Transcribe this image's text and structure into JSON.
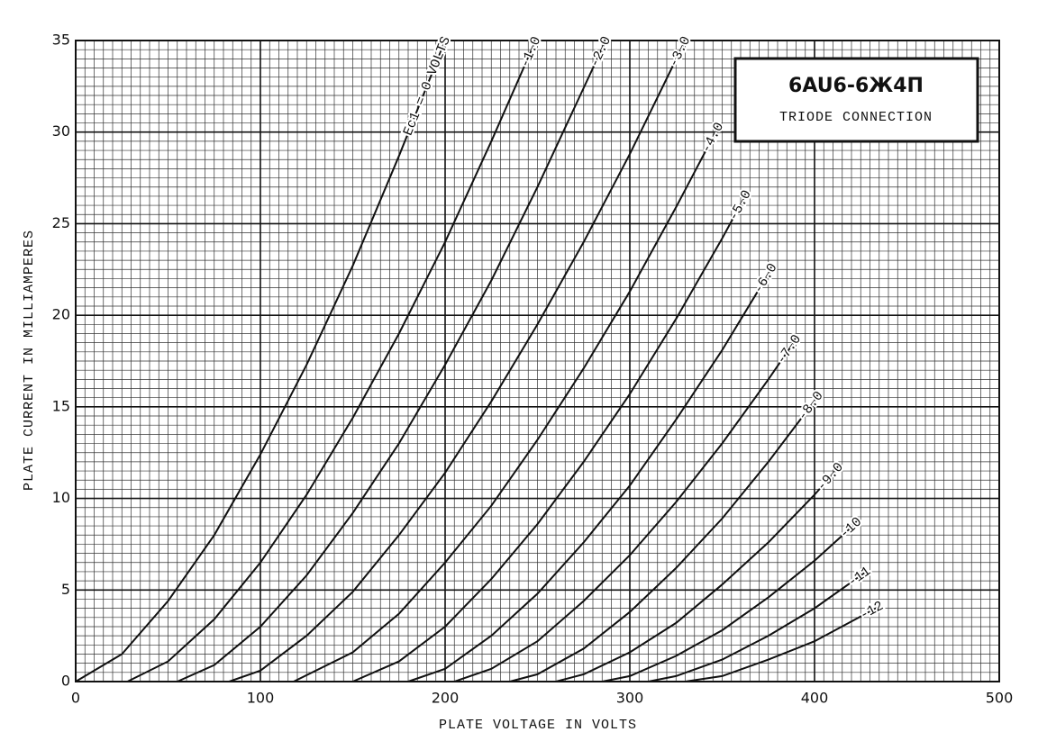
{
  "chart_data": {
    "type": "line",
    "title": "6AU6-6Ж4П",
    "subtitle": "TRIODE CONNECTION",
    "x_label": "PLATE VOLTAGE IN VOLTS",
    "y_label": "PLATE CURRENT IN MILLIAMPERES",
    "xlim": [
      0,
      500
    ],
    "ylim": [
      0,
      35
    ],
    "xticks": [
      0,
      100,
      200,
      300,
      400,
      500
    ],
    "yticks": [
      0,
      5,
      10,
      15,
      20,
      25,
      30,
      35
    ],
    "grid": true,
    "minor_grid": {
      "x": 5,
      "y": 0.5
    },
    "color": "#111111",
    "series": [
      {
        "name": "Ec1 = 0 VOLTS",
        "x": [
          0,
          25,
          50,
          75,
          100,
          125,
          150,
          175,
          200
        ],
        "values": [
          0,
          1.5,
          4.4,
          8.0,
          12.4,
          17.3,
          22.7,
          28.7,
          35.0
        ]
      },
      {
        "name": "-1.0",
        "x": [
          28,
          50,
          75,
          100,
          125,
          150,
          175,
          200,
          225,
          249
        ],
        "values": [
          0,
          1.1,
          3.4,
          6.5,
          10.2,
          14.4,
          19.0,
          24.0,
          29.5,
          35.0
        ]
      },
      {
        "name": "-2.0",
        "x": [
          55,
          75,
          100,
          125,
          150,
          175,
          200,
          225,
          250,
          287
        ],
        "values": [
          0,
          0.9,
          3.0,
          5.8,
          9.2,
          13.0,
          17.3,
          21.9,
          27.0,
          35.0
        ]
      },
      {
        "name": "-3.0",
        "x": [
          83,
          100,
          125,
          150,
          175,
          200,
          225,
          250,
          275,
          300,
          330
        ],
        "values": [
          0,
          0.6,
          2.5,
          4.9,
          8.0,
          11.4,
          15.3,
          19.5,
          24.0,
          28.8,
          35.0
        ]
      },
      {
        "name": "-4.0",
        "x": [
          118,
          150,
          175,
          200,
          225,
          250,
          275,
          300,
          325,
          348
        ],
        "values": [
          0,
          1.6,
          3.7,
          6.5,
          9.6,
          13.2,
          17.1,
          21.3,
          25.9,
          30.3
        ]
      },
      {
        "name": "-5.0",
        "x": [
          150,
          175,
          200,
          225,
          250,
          275,
          300,
          325,
          350,
          363
        ],
        "values": [
          0,
          1.1,
          3.0,
          5.6,
          8.6,
          12.0,
          15.7,
          19.8,
          24.2,
          26.6
        ]
      },
      {
        "name": "-6.0",
        "x": [
          180,
          200,
          225,
          250,
          275,
          300,
          325,
          350,
          377
        ],
        "values": [
          0,
          0.7,
          2.5,
          4.8,
          7.6,
          10.7,
          14.3,
          18.1,
          22.6
        ]
      },
      {
        "name": "-7.0",
        "x": [
          205,
          225,
          250,
          275,
          300,
          325,
          350,
          375,
          390
        ],
        "values": [
          0,
          0.7,
          2.2,
          4.4,
          6.9,
          9.8,
          13.0,
          16.5,
          18.7
        ]
      },
      {
        "name": "-8.0",
        "x": [
          235,
          250,
          275,
          300,
          325,
          350,
          375,
          402
        ],
        "values": [
          0,
          0.4,
          1.8,
          3.8,
          6.2,
          8.9,
          12.0,
          15.6
        ]
      },
      {
        "name": "-9.0",
        "x": [
          260,
          275,
          300,
          325,
          350,
          375,
          400,
          413
        ],
        "values": [
          0,
          0.4,
          1.6,
          3.2,
          5.3,
          7.6,
          10.2,
          11.7
        ]
      },
      {
        "name": "-10",
        "x": [
          285,
          300,
          325,
          350,
          375,
          400,
          423
        ],
        "values": [
          0,
          0.3,
          1.4,
          2.8,
          4.6,
          6.6,
          8.7
        ]
      },
      {
        "name": "-11",
        "x": [
          310,
          325,
          350,
          375,
          400,
          428
        ],
        "values": [
          0,
          0.3,
          1.2,
          2.5,
          4.0,
          6.0
        ]
      },
      {
        "name": "-12",
        "x": [
          330,
          350,
          375,
          400,
          435
        ],
        "values": [
          0,
          0.3,
          1.2,
          2.2,
          4.1
        ]
      }
    ]
  }
}
